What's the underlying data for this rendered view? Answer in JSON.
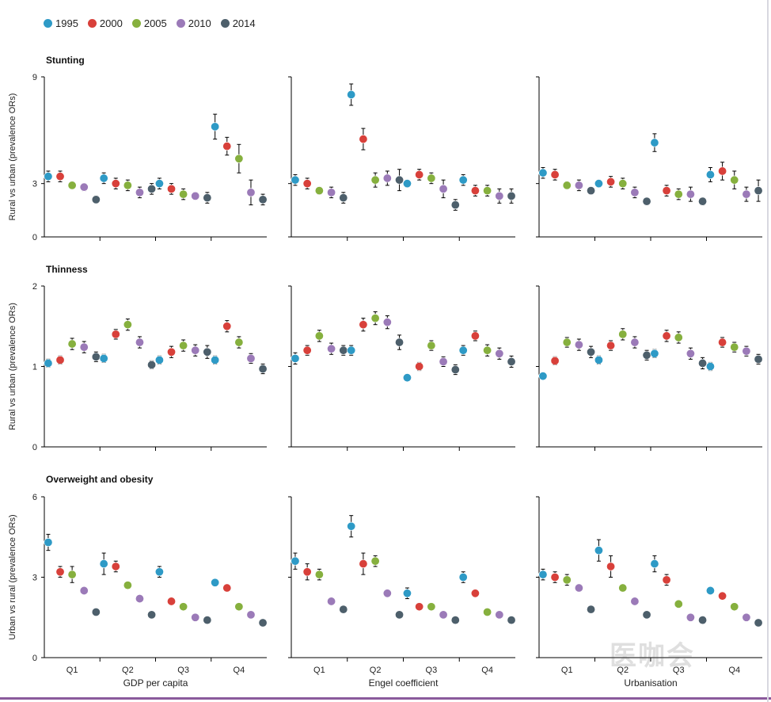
{
  "legend": [
    {
      "label": "1995",
      "color": "#2e9ac6"
    },
    {
      "label": "2000",
      "color": "#d8403a"
    },
    {
      "label": "2005",
      "color": "#86b03e"
    },
    {
      "label": "2010",
      "color": "#9b7ab8"
    },
    {
      "label": "2014",
      "color": "#4d5f6b"
    }
  ],
  "watermark": {
    "text": "医咖会"
  },
  "chart_data": {
    "type": "scatter",
    "description_axes": {
      "columns": [
        "GDP per capita",
        "Engel coefficient",
        "Urbanisation"
      ],
      "quartiles": [
        "Q1",
        "Q2",
        "Q3",
        "Q4"
      ],
      "years": [
        "1995",
        "2000",
        "2005",
        "2010",
        "2014"
      ]
    },
    "rows": [
      {
        "title": "Stunting",
        "ylabel": "Rural vs urban (prevalence ORs)",
        "ylim": [
          0,
          9
        ],
        "ticks": [
          0,
          3,
          9
        ],
        "panels": [
          {
            "xlabel": "GDP per capita",
            "points": [
              [
                3.4,
                3.4,
                2.9,
                2.8,
                2.1
              ],
              [
                3.3,
                3.0,
                2.9,
                2.5,
                2.7
              ],
              [
                3.0,
                2.7,
                2.4,
                2.3,
                2.2
              ],
              [
                6.2,
                5.1,
                4.4,
                2.5,
                2.1
              ]
            ],
            "err": [
              [
                0.3,
                0.3,
                0.2,
                0.2,
                0.2
              ],
              [
                0.3,
                0.3,
                0.3,
                0.3,
                0.3
              ],
              [
                0.3,
                0.3,
                0.3,
                0.2,
                0.3
              ],
              [
                0.7,
                0.5,
                0.8,
                0.7,
                0.3
              ]
            ]
          },
          {
            "xlabel": "Engel coefficient",
            "points": [
              [
                3.2,
                3.0,
                2.6,
                2.5,
                2.2
              ],
              [
                8.0,
                5.5,
                3.2,
                3.3,
                3.2
              ],
              [
                3.0,
                3.5,
                3.3,
                2.7,
                1.8
              ],
              [
                3.2,
                2.6,
                2.6,
                2.3,
                2.3
              ]
            ],
            "err": [
              [
                0.3,
                0.3,
                0.2,
                0.3,
                0.3
              ],
              [
                0.6,
                0.6,
                0.4,
                0.4,
                0.6
              ],
              [
                0.2,
                0.3,
                0.3,
                0.5,
                0.3
              ],
              [
                0.3,
                0.3,
                0.3,
                0.4,
                0.4
              ]
            ]
          },
          {
            "xlabel": "Urbanisation",
            "points": [
              [
                3.6,
                3.5,
                2.9,
                2.9,
                2.6
              ],
              [
                3.0,
                3.1,
                3.0,
                2.5,
                2.0
              ],
              [
                5.3,
                2.6,
                2.4,
                2.4,
                2.0
              ],
              [
                3.5,
                3.7,
                3.2,
                2.4,
                2.6
              ]
            ],
            "err": [
              [
                0.3,
                0.3,
                0.2,
                0.3,
                0.2
              ],
              [
                0.2,
                0.3,
                0.3,
                0.3,
                0.2
              ],
              [
                0.5,
                0.3,
                0.3,
                0.4,
                0.2
              ],
              [
                0.4,
                0.5,
                0.5,
                0.4,
                0.6
              ]
            ]
          }
        ]
      },
      {
        "title": "Thinness",
        "ylabel": "Rural vs urban (prevalence ORs)",
        "ylim": [
          0,
          2
        ],
        "ticks": [
          0,
          1,
          2
        ],
        "panels": [
          {
            "xlabel": "GDP per capita",
            "points": [
              [
                1.04,
                1.08,
                1.28,
                1.24,
                1.12
              ],
              [
                1.1,
                1.4,
                1.52,
                1.3,
                1.02
              ],
              [
                1.08,
                1.18,
                1.26,
                1.2,
                1.18
              ],
              [
                1.08,
                1.5,
                1.3,
                1.1,
                0.97
              ]
            ],
            "err": [
              [
                0.05,
                0.05,
                0.07,
                0.07,
                0.06
              ],
              [
                0.05,
                0.06,
                0.07,
                0.07,
                0.05
              ],
              [
                0.05,
                0.07,
                0.07,
                0.07,
                0.08
              ],
              [
                0.05,
                0.07,
                0.07,
                0.06,
                0.06
              ]
            ]
          },
          {
            "xlabel": "Engel coefficient",
            "points": [
              [
                1.1,
                1.2,
                1.38,
                1.22,
                1.2
              ],
              [
                1.2,
                1.52,
                1.6,
                1.55,
                1.3
              ],
              [
                0.86,
                1.0,
                1.26,
                1.06,
                0.96
              ],
              [
                1.2,
                1.38,
                1.2,
                1.16,
                1.06
              ]
            ],
            "err": [
              [
                0.07,
                0.06,
                0.07,
                0.07,
                0.06
              ],
              [
                0.06,
                0.08,
                0.08,
                0.08,
                0.09
              ],
              [
                0.04,
                0.05,
                0.06,
                0.06,
                0.06
              ],
              [
                0.06,
                0.06,
                0.07,
                0.07,
                0.07
              ]
            ]
          },
          {
            "xlabel": "Urbanisation",
            "points": [
              [
                0.88,
                1.07,
                1.3,
                1.27,
                1.18
              ],
              [
                1.08,
                1.26,
                1.4,
                1.3,
                1.14
              ],
              [
                1.16,
                1.38,
                1.36,
                1.16,
                1.04
              ],
              [
                1.0,
                1.3,
                1.24,
                1.19,
                1.09
              ]
            ],
            "err": [
              [
                0.04,
                0.05,
                0.06,
                0.07,
                0.07
              ],
              [
                0.05,
                0.06,
                0.07,
                0.07,
                0.06
              ],
              [
                0.05,
                0.07,
                0.07,
                0.07,
                0.07
              ],
              [
                0.05,
                0.06,
                0.06,
                0.06,
                0.06
              ]
            ]
          }
        ]
      },
      {
        "title": "Overweight and obesity",
        "ylabel": "Urban vs rural (prevalence ORs)",
        "ylim": [
          0,
          6
        ],
        "ticks": [
          0,
          3,
          6
        ],
        "panels": [
          {
            "xlabel": "GDP per capita",
            "points": [
              [
                4.3,
                3.2,
                3.1,
                2.5,
                1.7
              ],
              [
                3.5,
                3.4,
                2.7,
                2.2,
                1.6
              ],
              [
                3.2,
                2.1,
                1.9,
                1.5,
                1.4
              ],
              [
                2.8,
                2.6,
                1.9,
                1.6,
                1.3
              ]
            ],
            "err": [
              [
                0.3,
                0.2,
                0.3,
                0.1,
                0.1
              ],
              [
                0.4,
                0.2,
                0.1,
                0.1,
                0.1
              ],
              [
                0.2,
                0.1,
                0.1,
                0.1,
                0.1
              ],
              [
                0.1,
                0.1,
                0.1,
                0.1,
                0.1
              ]
            ]
          },
          {
            "xlabel": "Engel coefficient",
            "points": [
              [
                3.6,
                3.2,
                3.1,
                2.1,
                1.8
              ],
              [
                4.9,
                3.5,
                3.6,
                2.4,
                1.6
              ],
              [
                2.4,
                1.9,
                1.9,
                1.6,
                1.4
              ],
              [
                3.0,
                2.4,
                1.7,
                1.6,
                1.4
              ]
            ],
            "err": [
              [
                0.3,
                0.3,
                0.2,
                0.1,
                0.1
              ],
              [
                0.4,
                0.4,
                0.2,
                0.1,
                0.1
              ],
              [
                0.2,
                0.1,
                0.1,
                0.1,
                0.1
              ],
              [
                0.2,
                0.1,
                0.1,
                0.1,
                0.1
              ]
            ]
          },
          {
            "xlabel": "Urbanisation",
            "points": [
              [
                3.1,
                3.0,
                2.9,
                2.6,
                1.8
              ],
              [
                4.0,
                3.4,
                2.6,
                2.1,
                1.6
              ],
              [
                3.5,
                2.9,
                2.0,
                1.5,
                1.4
              ],
              [
                2.5,
                2.3,
                1.9,
                1.5,
                1.3
              ]
            ],
            "err": [
              [
                0.2,
                0.2,
                0.2,
                0.1,
                0.1
              ],
              [
                0.4,
                0.4,
                0.1,
                0.1,
                0.1
              ],
              [
                0.3,
                0.2,
                0.1,
                0.1,
                0.1
              ],
              [
                0.1,
                0.1,
                0.1,
                0.1,
                0.1
              ]
            ]
          }
        ]
      }
    ]
  }
}
